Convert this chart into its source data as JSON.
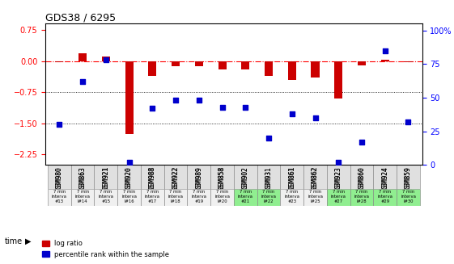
{
  "title": "GDS38 / 6295",
  "samples": [
    "GSM980",
    "GSM863",
    "GSM921",
    "GSM920",
    "GSM988",
    "GSM922",
    "GSM989",
    "GSM858",
    "GSM902",
    "GSM931",
    "GSM861",
    "GSM862",
    "GSM923",
    "GSM860",
    "GSM924",
    "GSM859"
  ],
  "time_labels": [
    "#13",
    "l#14",
    "#15",
    "l#16",
    "#17",
    "l#18",
    "#19",
    "l#20",
    "#21",
    "l#22",
    "#23",
    "l#25",
    "#27",
    "l#28",
    "#29",
    "l#30"
  ],
  "log_ratio": [
    -0.02,
    0.18,
    0.12,
    -1.75,
    -0.35,
    -0.12,
    -0.12,
    -0.2,
    -0.2,
    -0.35,
    -0.45,
    -0.4,
    -0.9,
    -0.1,
    0.04,
    -0.03
  ],
  "percentile": [
    30,
    62,
    78,
    2,
    42,
    48,
    48,
    43,
    43,
    20,
    38,
    35,
    2,
    17,
    85,
    32
  ],
  "bar_color": "#cc0000",
  "dot_color": "#0000cc",
  "ylim_left": [
    -2.5,
    0.9
  ],
  "ylim_right": [
    0,
    105
  ],
  "yticks_left": [
    0.75,
    0,
    -0.75,
    -1.5,
    -2.25
  ],
  "yticks_right": [
    100,
    75,
    50,
    25,
    0
  ],
  "hline_y": [
    0,
    -0.75,
    -1.5
  ],
  "bg_color": "#ffffff",
  "plot_bg": "#ffffff",
  "green_cols": [
    8,
    9,
    12,
    13,
    14,
    15
  ],
  "time_row_bg_white": [
    0,
    1,
    2,
    3,
    4,
    5,
    6,
    7,
    10,
    11
  ],
  "time_row_bg_green": [
    8,
    9,
    12,
    13,
    14,
    15
  ]
}
